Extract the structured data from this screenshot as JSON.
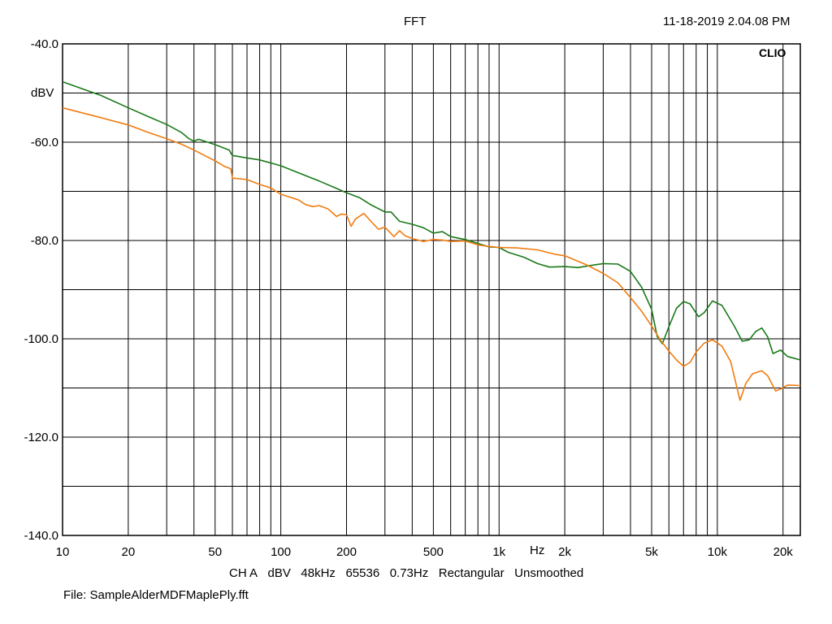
{
  "header": {
    "title": "FFT",
    "timestamp": "11-18-2019 2.04.08 PM"
  },
  "footer": {
    "settings": [
      "CH A",
      "dBV",
      "48kHz",
      "65536",
      "0.73Hz",
      "Rectangular",
      "Unsmoothed"
    ],
    "file": "File: SampleAlderMDFMaplePly.fft"
  },
  "chart_data": {
    "type": "line",
    "title": "FFT",
    "brand": "CLIO",
    "xlabel": "Hz",
    "ylabel": "dBV",
    "xscale": "log",
    "xlim": [
      10,
      24000
    ],
    "ylim": [
      -140,
      -40
    ],
    "grid": true,
    "x_ticks": [
      {
        "value": 10,
        "label": "10"
      },
      {
        "value": 20,
        "label": "20"
      },
      {
        "value": 50,
        "label": "50"
      },
      {
        "value": 100,
        "label": "100"
      },
      {
        "value": 200,
        "label": "200"
      },
      {
        "value": 500,
        "label": "500"
      },
      {
        "value": 1000,
        "label": "1k"
      },
      {
        "value": 2000,
        "label": "2k"
      },
      {
        "value": 5000,
        "label": "5k"
      },
      {
        "value": 10000,
        "label": "10k"
      },
      {
        "value": 20000,
        "label": "20k"
      }
    ],
    "y_ticks": [
      {
        "value": -40,
        "label": "-40.0"
      },
      {
        "value": -60,
        "label": "-60.0"
      },
      {
        "value": -80,
        "label": "-80.0"
      },
      {
        "value": -100,
        "label": "-100.0"
      },
      {
        "value": -120,
        "label": "-120.0"
      },
      {
        "value": -140,
        "label": "-140.0"
      }
    ],
    "series": [
      {
        "color": "#1a7a1a",
        "points": [
          [
            10,
            -47.7
          ],
          [
            15,
            -50.5
          ],
          [
            20,
            -53
          ],
          [
            25,
            -54.9
          ],
          [
            30,
            -56.4
          ],
          [
            35,
            -58
          ],
          [
            38,
            -59.3
          ],
          [
            40,
            -59.8
          ],
          [
            42,
            -59.4
          ],
          [
            50,
            -60.5
          ],
          [
            58,
            -61.6
          ],
          [
            59,
            -62.2
          ],
          [
            60,
            -62.7
          ],
          [
            70,
            -63.2
          ],
          [
            80,
            -63.6
          ],
          [
            100,
            -64.8
          ],
          [
            120,
            -66.2
          ],
          [
            150,
            -67.9
          ],
          [
            180,
            -69.4
          ],
          [
            200,
            -70.3
          ],
          [
            230,
            -71.3
          ],
          [
            260,
            -72.8
          ],
          [
            300,
            -74.2
          ],
          [
            320,
            -74.2
          ],
          [
            350,
            -76.1
          ],
          [
            400,
            -76.7
          ],
          [
            450,
            -77.4
          ],
          [
            500,
            -78.5
          ],
          [
            550,
            -78.2
          ],
          [
            600,
            -79.2
          ],
          [
            700,
            -79.8
          ],
          [
            800,
            -80.6
          ],
          [
            900,
            -81.3
          ],
          [
            1000,
            -81.4
          ],
          [
            1100,
            -82.4
          ],
          [
            1300,
            -83.4
          ],
          [
            1500,
            -84.7
          ],
          [
            1700,
            -85.4
          ],
          [
            2000,
            -85.3
          ],
          [
            2300,
            -85.5
          ],
          [
            2600,
            -85.1
          ],
          [
            3000,
            -84.7
          ],
          [
            3500,
            -84.8
          ],
          [
            4000,
            -86.3
          ],
          [
            4500,
            -89.5
          ],
          [
            5000,
            -94
          ],
          [
            5300,
            -99.5
          ],
          [
            5600,
            -101
          ],
          [
            6000,
            -97.5
          ],
          [
            6500,
            -93.8
          ],
          [
            7000,
            -92.4
          ],
          [
            7500,
            -92.9
          ],
          [
            8200,
            -95.5
          ],
          [
            8700,
            -94.7
          ],
          [
            9500,
            -92.3
          ],
          [
            10500,
            -93.2
          ],
          [
            12000,
            -97.5
          ],
          [
            13000,
            -100.5
          ],
          [
            14000,
            -100.2
          ],
          [
            15000,
            -98.5
          ],
          [
            16000,
            -97.8
          ],
          [
            17000,
            -99.6
          ],
          [
            18000,
            -103
          ],
          [
            19500,
            -102.3
          ],
          [
            21000,
            -103.6
          ],
          [
            24000,
            -104.3
          ]
        ]
      },
      {
        "color": "#f07c10",
        "points": [
          [
            10,
            -53
          ],
          [
            15,
            -55
          ],
          [
            20,
            -56.5
          ],
          [
            25,
            -58.1
          ],
          [
            30,
            -59.3
          ],
          [
            35,
            -60.4
          ],
          [
            40,
            -61.6
          ],
          [
            50,
            -63.8
          ],
          [
            55,
            -64.9
          ],
          [
            59,
            -65.4
          ],
          [
            60,
            -67.3
          ],
          [
            70,
            -67.6
          ],
          [
            80,
            -68.6
          ],
          [
            90,
            -69.3
          ],
          [
            100,
            -70.6
          ],
          [
            120,
            -71.7
          ],
          [
            130,
            -72.7
          ],
          [
            140,
            -73.1
          ],
          [
            150,
            -72.9
          ],
          [
            165,
            -73.6
          ],
          [
            180,
            -75.1
          ],
          [
            190,
            -74.6
          ],
          [
            200,
            -74.8
          ],
          [
            210,
            -77.1
          ],
          [
            220,
            -75.6
          ],
          [
            240,
            -74.5
          ],
          [
            260,
            -76.2
          ],
          [
            280,
            -77.7
          ],
          [
            300,
            -77.3
          ],
          [
            330,
            -79.2
          ],
          [
            350,
            -78
          ],
          [
            370,
            -79
          ],
          [
            400,
            -79.6
          ],
          [
            450,
            -80.2
          ],
          [
            500,
            -79.8
          ],
          [
            550,
            -79.9
          ],
          [
            600,
            -80.2
          ],
          [
            700,
            -80.1
          ],
          [
            800,
            -80.9
          ],
          [
            900,
            -81.2
          ],
          [
            1000,
            -81.4
          ],
          [
            1200,
            -81.5
          ],
          [
            1500,
            -81.9
          ],
          [
            1800,
            -82.8
          ],
          [
            2000,
            -83.1
          ],
          [
            2500,
            -84.9
          ],
          [
            3000,
            -86.7
          ],
          [
            3500,
            -88.6
          ],
          [
            4000,
            -91.6
          ],
          [
            4500,
            -94.4
          ],
          [
            5000,
            -97.4
          ],
          [
            5500,
            -100.3
          ],
          [
            6000,
            -102.5
          ],
          [
            6500,
            -104.3
          ],
          [
            7000,
            -105.6
          ],
          [
            7500,
            -104.8
          ],
          [
            8000,
            -102.7
          ],
          [
            8700,
            -100.9
          ],
          [
            9500,
            -100.2
          ],
          [
            10500,
            -101.5
          ],
          [
            11500,
            -104.6
          ],
          [
            12200,
            -109.3
          ],
          [
            12700,
            -112.5
          ],
          [
            13500,
            -109.1
          ],
          [
            14500,
            -107.1
          ],
          [
            16000,
            -106.5
          ],
          [
            17000,
            -107.5
          ],
          [
            18500,
            -110.6
          ],
          [
            19500,
            -110.2
          ],
          [
            21000,
            -109.4
          ],
          [
            24000,
            -109.5
          ]
        ]
      }
    ]
  }
}
